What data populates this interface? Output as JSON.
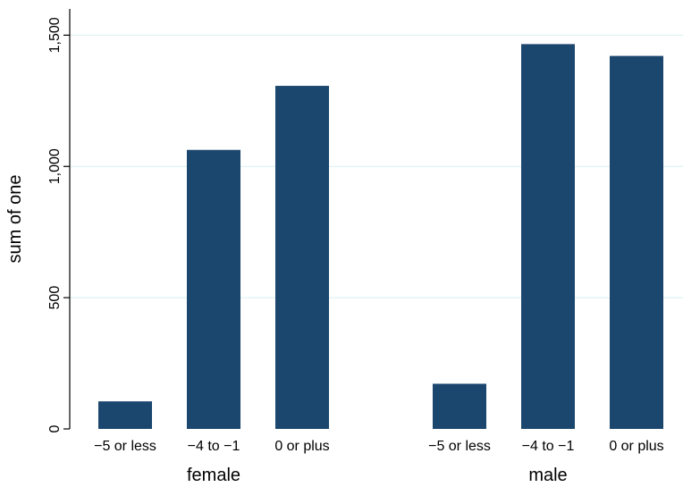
{
  "chart_data": {
    "type": "bar",
    "ylabel": "sum of one",
    "ylim": [
      0,
      1600
    ],
    "yticks": [
      0,
      500,
      1000,
      1500
    ],
    "ytick_labels": [
      "0",
      "500",
      "1,000",
      "1,500"
    ],
    "grid": true,
    "groups": [
      {
        "label": "female",
        "categories": [
          "−5 or less",
          "−4 to −1",
          "0 or plus"
        ],
        "values": [
          105,
          1063,
          1307
        ]
      },
      {
        "label": "male",
        "categories": [
          "−5 or less",
          "−4 to −1",
          "0 or plus"
        ],
        "values": [
          172,
          1466,
          1421
        ]
      }
    ],
    "colors": {
      "bar": "#1b466e",
      "grid": "#d9efef",
      "axis": "#000000",
      "background": "#ffffff"
    }
  }
}
